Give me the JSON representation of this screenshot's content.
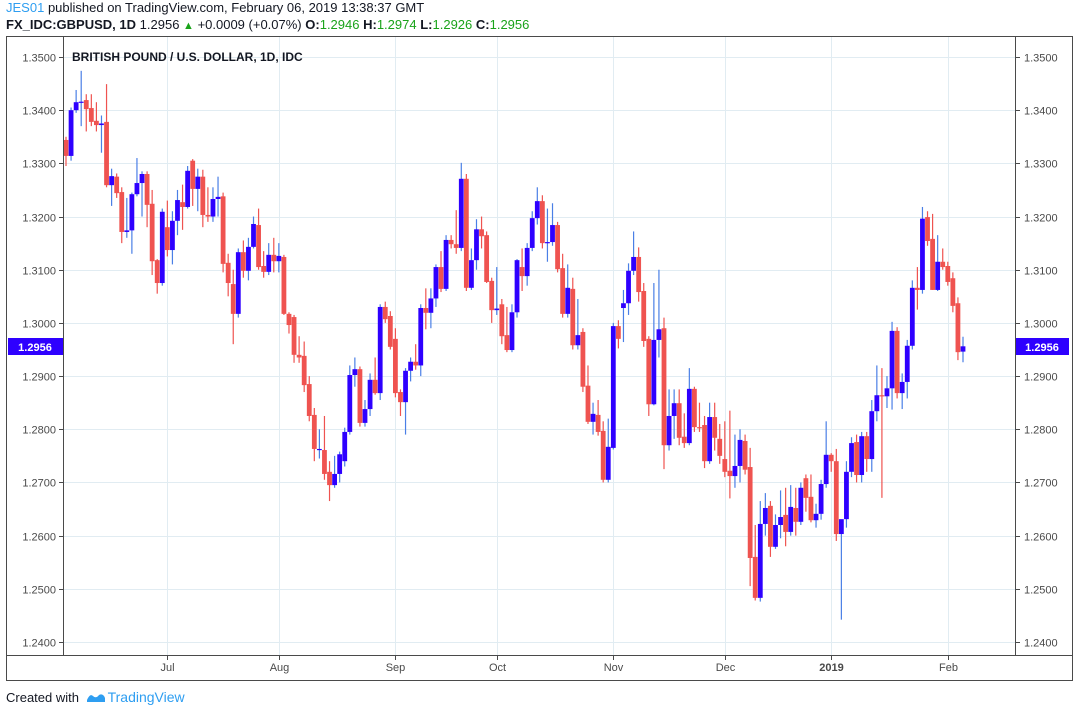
{
  "header": {
    "user": "JES01",
    "published_text": "published on TradingView.com, February 06, 2019 13:38:37 GMT",
    "symbol": "FX_IDC:GBPUSD, 1D",
    "last": "1.2956",
    "change": "+0.0009 (+0.07%)",
    "open_label": "O:",
    "open": "1.2946",
    "high_label": "H:",
    "high": "1.2974",
    "low_label": "L:",
    "low": "1.2926",
    "close_label": "C:",
    "close": "1.2956",
    "change_icon": "triangle-up-icon"
  },
  "footer": {
    "created_with": "Created with",
    "brand": "TradingView"
  },
  "colors": {
    "up": "#2e00ff",
    "up_wick": "#4a7fe6",
    "down": "#ef5350",
    "grid": "#e1ecf2",
    "price_label": "#2e00ff",
    "positive_text": "#1aa31a"
  },
  "chart_data": {
    "type": "candlestick",
    "title": "BRITISH POUND / U.S. DOLLAR, 1D, IDC",
    "ylim": [
      1.238,
      1.352
    ],
    "y_ticks": [
      "1.2400",
      "1.2500",
      "1.2600",
      "1.2700",
      "1.2800",
      "1.2900",
      "1.3000",
      "1.3100",
      "1.3200",
      "1.3300",
      "1.3400",
      "1.3500"
    ],
    "y_axes": [
      "left",
      "right"
    ],
    "grid": true,
    "x_ticks": [
      {
        "label": "Jul",
        "bar": 20,
        "bold": false
      },
      {
        "label": "Aug",
        "bar": 42,
        "bold": false
      },
      {
        "label": "Sep",
        "bar": 65,
        "bold": false
      },
      {
        "label": "Oct",
        "bar": 85,
        "bold": false
      },
      {
        "label": "Nov",
        "bar": 108,
        "bold": false
      },
      {
        "label": "Dec",
        "bar": 130,
        "bold": false
      },
      {
        "label": "2019",
        "bar": 151,
        "bold": true
      },
      {
        "label": "Feb",
        "bar": 174,
        "bold": false
      }
    ],
    "last_price_label": "1.2956",
    "last_price": 1.2956,
    "ohlc_fields": [
      "open",
      "high",
      "low",
      "close"
    ],
    "candles": [
      [
        1.3344,
        1.335,
        1.3295,
        1.3314
      ],
      [
        1.3314,
        1.3405,
        1.3305,
        1.34
      ],
      [
        1.34,
        1.3438,
        1.3395,
        1.3415
      ],
      [
        1.3415,
        1.3474,
        1.337,
        1.3416
      ],
      [
        1.3419,
        1.343,
        1.336,
        1.3402
      ],
      [
        1.3404,
        1.343,
        1.337,
        1.3378
      ],
      [
        1.338,
        1.3415,
        1.336,
        1.3372
      ],
      [
        1.3372,
        1.339,
        1.332,
        1.3375
      ],
      [
        1.3378,
        1.3449,
        1.3255,
        1.3259
      ],
      [
        1.3259,
        1.329,
        1.322,
        1.3276
      ],
      [
        1.3275,
        1.3281,
        1.3235,
        1.3244
      ],
      [
        1.3246,
        1.3255,
        1.315,
        1.3171
      ],
      [
        1.3171,
        1.3235,
        1.316,
        1.3174
      ],
      [
        1.3174,
        1.3245,
        1.313,
        1.3242
      ],
      [
        1.3242,
        1.331,
        1.3238,
        1.3263
      ],
      [
        1.3263,
        1.3285,
        1.32,
        1.328
      ],
      [
        1.328,
        1.3285,
        1.318,
        1.3222
      ],
      [
        1.3224,
        1.325,
        1.309,
        1.3116
      ],
      [
        1.3118,
        1.312,
        1.3055,
        1.3075
      ],
      [
        1.3075,
        1.3215,
        1.307,
        1.3209
      ],
      [
        1.318,
        1.323,
        1.3125,
        1.3137
      ],
      [
        1.3137,
        1.321,
        1.311,
        1.3192
      ],
      [
        1.3192,
        1.325,
        1.3165,
        1.3231
      ],
      [
        1.3227,
        1.326,
        1.3175,
        1.3218
      ],
      [
        1.3218,
        1.3295,
        1.3215,
        1.3286
      ],
      [
        1.3305,
        1.3308,
        1.322,
        1.3252
      ],
      [
        1.3252,
        1.329,
        1.321,
        1.3275
      ],
      [
        1.3275,
        1.3288,
        1.318,
        1.3203
      ],
      [
        1.3203,
        1.3255,
        1.319,
        1.32
      ],
      [
        1.32,
        1.3255,
        1.319,
        1.3233
      ],
      [
        1.3233,
        1.3275,
        1.32,
        1.3237
      ],
      [
        1.3238,
        1.3245,
        1.3095,
        1.3111
      ],
      [
        1.3113,
        1.313,
        1.305,
        1.3075
      ],
      [
        1.3073,
        1.31,
        1.296,
        1.3017
      ],
      [
        1.3017,
        1.314,
        1.301,
        1.3133
      ],
      [
        1.3133,
        1.3155,
        1.3085,
        1.3098
      ],
      [
        1.3098,
        1.316,
        1.308,
        1.3143
      ],
      [
        1.3143,
        1.32,
        1.314,
        1.3186
      ],
      [
        1.3184,
        1.3215,
        1.31,
        1.3105
      ],
      [
        1.3107,
        1.3135,
        1.3085,
        1.3096
      ],
      [
        1.3096,
        1.315,
        1.309,
        1.3128
      ],
      [
        1.3128,
        1.316,
        1.3095,
        1.3116
      ],
      [
        1.3116,
        1.315,
        1.3095,
        1.3126
      ],
      [
        1.3124,
        1.3128,
        1.3015,
        1.3017
      ],
      [
        1.3017,
        1.302,
        1.298,
        1.2996
      ],
      [
        1.3011,
        1.3015,
        1.2925,
        1.294
      ],
      [
        1.294,
        1.2975,
        1.2925,
        1.2935
      ],
      [
        1.2938,
        1.2965,
        1.287,
        1.2883
      ],
      [
        1.2885,
        1.29,
        1.2815,
        1.2825
      ],
      [
        1.2827,
        1.284,
        1.274,
        1.2763
      ],
      [
        1.2763,
        1.28,
        1.2745,
        1.2763
      ],
      [
        1.2761,
        1.2825,
        1.2705,
        1.2716
      ],
      [
        1.272,
        1.274,
        1.2665,
        1.2695
      ],
      [
        1.2695,
        1.275,
        1.269,
        1.2716
      ],
      [
        1.2716,
        1.2758,
        1.27,
        1.2753
      ],
      [
        1.274,
        1.2803,
        1.273,
        1.2795
      ],
      [
        1.2795,
        1.292,
        1.279,
        1.2902
      ],
      [
        1.2902,
        1.2935,
        1.288,
        1.2913
      ],
      [
        1.2913,
        1.2918,
        1.2805,
        1.2812
      ],
      [
        1.2812,
        1.2855,
        1.2805,
        1.2838
      ],
      [
        1.2838,
        1.2905,
        1.2825,
        1.2893
      ],
      [
        1.2893,
        1.2935,
        1.2865,
        1.2868
      ],
      [
        1.2868,
        1.3035,
        1.2855,
        1.303
      ],
      [
        1.303,
        1.304,
        1.3,
        1.3007
      ],
      [
        1.3013,
        1.3022,
        1.295,
        1.2955
      ],
      [
        1.297,
        1.299,
        1.286,
        1.2868
      ],
      [
        1.287,
        1.2875,
        1.2825,
        1.2851
      ],
      [
        1.2851,
        1.2915,
        1.279,
        1.291
      ],
      [
        1.291,
        1.2935,
        1.289,
        1.2927
      ],
      [
        1.2927,
        1.296,
        1.2912,
        1.292
      ],
      [
        1.292,
        1.3035,
        1.29,
        1.3028
      ],
      [
        1.3028,
        1.3065,
        1.2988,
        1.3019
      ],
      [
        1.3019,
        1.3065,
        1.299,
        1.3046
      ],
      [
        1.3046,
        1.311,
        1.303,
        1.3105
      ],
      [
        1.3105,
        1.3135,
        1.3058,
        1.3064
      ],
      [
        1.3064,
        1.3165,
        1.306,
        1.3156
      ],
      [
        1.3156,
        1.3165,
        1.314,
        1.3148
      ],
      [
        1.3148,
        1.3212,
        1.313,
        1.3141
      ],
      [
        1.3141,
        1.3301,
        1.3135,
        1.3271
      ],
      [
        1.3271,
        1.328,
        1.306,
        1.3066
      ],
      [
        1.3066,
        1.314,
        1.3062,
        1.3118
      ],
      [
        1.3118,
        1.3195,
        1.31,
        1.3176
      ],
      [
        1.3176,
        1.32,
        1.314,
        1.3163
      ],
      [
        1.3165,
        1.3172,
        1.3075,
        1.3077
      ],
      [
        1.3079,
        1.3085,
        1.3,
        1.3024
      ],
      [
        1.3024,
        1.3105,
        1.3015,
        1.3027
      ],
      [
        1.3035,
        1.3045,
        1.296,
        1.2975
      ],
      [
        1.2977,
        1.303,
        1.2945,
        1.2949
      ],
      [
        1.2949,
        1.3035,
        1.2945,
        1.302
      ],
      [
        1.302,
        1.312,
        1.301,
        1.3118
      ],
      [
        1.3105,
        1.314,
        1.306,
        1.3088
      ],
      [
        1.3088,
        1.315,
        1.307,
        1.3141
      ],
      [
        1.3141,
        1.321,
        1.3135,
        1.3197
      ],
      [
        1.3197,
        1.3255,
        1.3185,
        1.3229
      ],
      [
        1.3229,
        1.324,
        1.314,
        1.315
      ],
      [
        1.315,
        1.3215,
        1.3115,
        1.3152
      ],
      [
        1.3152,
        1.3225,
        1.3145,
        1.3184
      ],
      [
        1.3184,
        1.319,
        1.3095,
        1.3101
      ],
      [
        1.3103,
        1.313,
        1.301,
        1.3017
      ],
      [
        1.3017,
        1.311,
        1.301,
        1.3066
      ],
      [
        1.3064,
        1.3085,
        1.295,
        1.2958
      ],
      [
        1.2958,
        1.3045,
        1.295,
        1.2977
      ],
      [
        1.2983,
        1.299,
        1.287,
        1.288
      ],
      [
        1.2882,
        1.292,
        1.281,
        1.2814
      ],
      [
        1.2814,
        1.285,
        1.279,
        1.2829
      ],
      [
        1.2827,
        1.2855,
        1.2788,
        1.2795
      ],
      [
        1.2797,
        1.2815,
        1.27,
        1.2705
      ],
      [
        1.2705,
        1.282,
        1.27,
        1.2767
      ],
      [
        1.2765,
        1.3,
        1.2762,
        1.2994
      ],
      [
        1.2994,
        1.3005,
        1.2952,
        1.297
      ],
      [
        1.3028,
        1.3062,
        1.2964,
        1.3037
      ],
      [
        1.3037,
        1.3112,
        1.3015,
        1.3098
      ],
      [
        1.3098,
        1.3172,
        1.309,
        1.3124
      ],
      [
        1.3124,
        1.3142,
        1.304,
        1.3058
      ],
      [
        1.306,
        1.3075,
        1.2955,
        1.2966
      ],
      [
        1.297,
        1.2975,
        1.2825,
        1.2847
      ],
      [
        1.2847,
        1.3075,
        1.2845,
        1.2968
      ],
      [
        1.2968,
        1.31,
        1.2935,
        1.2988
      ],
      [
        1.299,
        1.301,
        1.2725,
        1.277
      ],
      [
        1.277,
        1.2875,
        1.276,
        1.2825
      ],
      [
        1.2825,
        1.2875,
        1.2782,
        1.2849
      ],
      [
        1.2849,
        1.2875,
        1.277,
        1.2784
      ],
      [
        1.2786,
        1.283,
        1.2765,
        1.2774
      ],
      [
        1.2774,
        1.2915,
        1.277,
        1.2876
      ],
      [
        1.2876,
        1.288,
        1.2795,
        1.2804
      ],
      [
        1.2804,
        1.285,
        1.2795,
        1.2803
      ],
      [
        1.2808,
        1.2825,
        1.2727,
        1.274
      ],
      [
        1.274,
        1.285,
        1.2735,
        1.2823
      ],
      [
        1.2823,
        1.285,
        1.276,
        1.2784
      ],
      [
        1.2782,
        1.281,
        1.2735,
        1.275
      ],
      [
        1.2744,
        1.2815,
        1.271,
        1.272
      ],
      [
        1.2722,
        1.2835,
        1.267,
        1.2712
      ],
      [
        1.2712,
        1.279,
        1.269,
        1.2731
      ],
      [
        1.2731,
        1.28,
        1.27,
        1.278
      ],
      [
        1.2778,
        1.279,
        1.2715,
        1.2724
      ],
      [
        1.2729,
        1.2765,
        1.2505,
        1.2558
      ],
      [
        1.256,
        1.262,
        1.2478,
        1.2483
      ],
      [
        1.2483,
        1.2665,
        1.2476,
        1.2622
      ],
      [
        1.2622,
        1.268,
        1.26,
        1.2652
      ],
      [
        1.2656,
        1.2665,
        1.256,
        1.2579
      ],
      [
        1.2579,
        1.264,
        1.2575,
        1.262
      ],
      [
        1.262,
        1.2685,
        1.2595,
        1.2635
      ],
      [
        1.2639,
        1.269,
        1.258,
        1.2607
      ],
      [
        1.2607,
        1.2695,
        1.26,
        1.2654
      ],
      [
        1.2652,
        1.269,
        1.26,
        1.2626
      ],
      [
        1.2626,
        1.27,
        1.262,
        1.269
      ],
      [
        1.2708,
        1.2715,
        1.2645,
        1.2671
      ],
      [
        1.2673,
        1.2715,
        1.2625,
        1.2629
      ],
      [
        1.2629,
        1.266,
        1.2615,
        1.2641
      ],
      [
        1.2641,
        1.2705,
        1.263,
        1.2697
      ],
      [
        1.2697,
        1.2815,
        1.269,
        1.2752
      ],
      [
        1.2752,
        1.2755,
        1.272,
        1.274
      ],
      [
        1.274,
        1.2763,
        1.259,
        1.2603
      ],
      [
        1.2603,
        1.2625,
        1.2442,
        1.2631
      ],
      [
        1.2631,
        1.274,
        1.2615,
        1.272
      ],
      [
        1.272,
        1.2785,
        1.271,
        1.2774
      ],
      [
        1.2776,
        1.279,
        1.27,
        1.2714
      ],
      [
        1.2714,
        1.2795,
        1.27,
        1.2787
      ],
      [
        1.2787,
        1.2795,
        1.272,
        1.2744
      ],
      [
        1.2744,
        1.2855,
        1.272,
        1.2834
      ],
      [
        1.2834,
        1.292,
        1.2815,
        1.2864
      ],
      [
        1.2864,
        1.2915,
        1.2671,
        1.2862
      ],
      [
        1.2862,
        1.29,
        1.284,
        1.2877
      ],
      [
        1.2877,
        1.3002,
        1.2837,
        1.2985
      ],
      [
        1.2985,
        1.2992,
        1.2858,
        1.2868
      ],
      [
        1.2868,
        1.2905,
        1.2838,
        1.2889
      ],
      [
        1.2889,
        1.2968,
        1.2858,
        1.2957
      ],
      [
        1.2957,
        1.308,
        1.295,
        1.3066
      ],
      [
        1.3066,
        1.3105,
        1.3025,
        1.3062
      ],
      [
        1.3062,
        1.3218,
        1.3055,
        1.3196
      ],
      [
        1.3199,
        1.321,
        1.3145,
        1.3154
      ],
      [
        1.3158,
        1.3205,
        1.3062,
        1.3062
      ],
      [
        1.3062,
        1.3165,
        1.306,
        1.3115
      ],
      [
        1.3115,
        1.314,
        1.31,
        1.3105
      ],
      [
        1.3107,
        1.3115,
        1.307,
        1.3077
      ],
      [
        1.3084,
        1.3095,
        1.302,
        1.3032
      ],
      [
        1.3037,
        1.3048,
        1.293,
        1.2945
      ],
      [
        1.2946,
        1.2974,
        1.2926,
        1.2956
      ]
    ]
  }
}
